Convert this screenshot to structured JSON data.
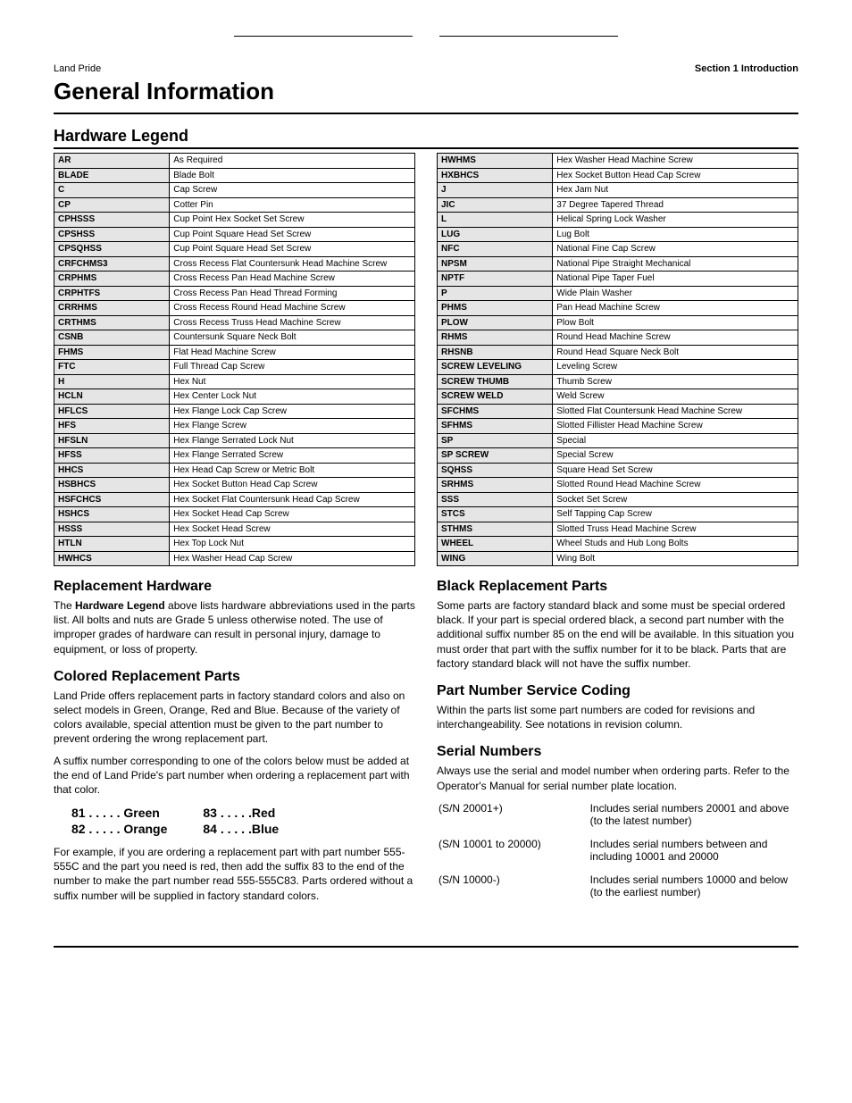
{
  "header": {
    "left": "Land Pride",
    "right": "Section 1   Introduction"
  },
  "title": "General Information",
  "hw_legend_title": "Hardware Legend",
  "legend_left": [
    {
      "a": "AR",
      "d": "As Required"
    },
    {
      "a": "BLADE",
      "d": "Blade Bolt"
    },
    {
      "a": "C",
      "d": "Cap Screw"
    },
    {
      "a": "CP",
      "d": "Cotter Pin"
    },
    {
      "a": "CPHSSS",
      "d": "Cup Point Hex Socket Set Screw"
    },
    {
      "a": "CPSHSS",
      "d": "Cup Point Square Head Set Screw"
    },
    {
      "a": "CPSQHSS",
      "d": "Cup Point Square Head Set Screw"
    },
    {
      "a": "CRFCHMS3",
      "d": "Cross Recess Flat Countersunk Head Machine Screw"
    },
    {
      "a": "CRPHMS",
      "d": "Cross Recess Pan Head Machine Screw"
    },
    {
      "a": "CRPHTFS",
      "d": "Cross Recess Pan Head Thread Forming"
    },
    {
      "a": "CRRHMS",
      "d": "Cross Recess Round Head Machine Screw"
    },
    {
      "a": "CRTHMS",
      "d": "Cross Recess Truss Head Machine Screw"
    },
    {
      "a": "CSNB",
      "d": "Countersunk Square Neck Bolt"
    },
    {
      "a": "FHMS",
      "d": "Flat Head Machine Screw"
    },
    {
      "a": "FTC",
      "d": "Full Thread Cap Screw"
    },
    {
      "a": "H",
      "d": "Hex Nut"
    },
    {
      "a": "HCLN",
      "d": "Hex Center Lock Nut"
    },
    {
      "a": "HFLCS",
      "d": "Hex Flange Lock Cap Screw"
    },
    {
      "a": "HFS",
      "d": "Hex Flange Screw"
    },
    {
      "a": "HFSLN",
      "d": "Hex Flange Serrated Lock Nut"
    },
    {
      "a": "HFSS",
      "d": "Hex Flange Serrated Screw"
    },
    {
      "a": "HHCS",
      "d": "Hex Head Cap Screw or Metric Bolt"
    },
    {
      "a": "HSBHCS",
      "d": "Hex Socket Button Head Cap Screw"
    },
    {
      "a": "HSFCHCS",
      "d": "Hex Socket Flat Countersunk Head Cap Screw"
    },
    {
      "a": "HSHCS",
      "d": "Hex Socket Head Cap Screw"
    },
    {
      "a": "HSSS",
      "d": "Hex Socket Head Screw"
    },
    {
      "a": "HTLN",
      "d": "Hex Top Lock Nut"
    },
    {
      "a": "HWHCS",
      "d": "Hex Washer Head Cap Screw"
    }
  ],
  "legend_right": [
    {
      "a": "HWHMS",
      "d": "Hex Washer Head Machine Screw"
    },
    {
      "a": "HXBHCS",
      "d": "Hex Socket Button Head Cap Screw"
    },
    {
      "a": "J",
      "d": "Hex Jam Nut"
    },
    {
      "a": "JIC",
      "d": "37 Degree Tapered Thread"
    },
    {
      "a": "L",
      "d": "Helical Spring Lock Washer"
    },
    {
      "a": "LUG",
      "d": "Lug Bolt"
    },
    {
      "a": "NFC",
      "d": "National Fine Cap Screw"
    },
    {
      "a": "NPSM",
      "d": "National Pipe Straight Mechanical"
    },
    {
      "a": "NPTF",
      "d": "National Pipe Taper Fuel"
    },
    {
      "a": "P",
      "d": "Wide Plain Washer"
    },
    {
      "a": "PHMS",
      "d": "Pan Head Machine Screw"
    },
    {
      "a": "PLOW",
      "d": "Plow Bolt"
    },
    {
      "a": "RHMS",
      "d": "Round Head Machine Screw"
    },
    {
      "a": "RHSNB",
      "d": "Round Head Square Neck Bolt"
    },
    {
      "a": "SCREW LEVELING",
      "d": "Leveling Screw"
    },
    {
      "a": "SCREW THUMB",
      "d": "Thumb Screw"
    },
    {
      "a": "SCREW WELD",
      "d": "Weld Screw"
    },
    {
      "a": "SFCHMS",
      "d": "Slotted Flat Countersunk Head Machine Screw"
    },
    {
      "a": "SFHMS",
      "d": "Slotted Fillister Head Machine Screw"
    },
    {
      "a": "SP",
      "d": "Special"
    },
    {
      "a": "SP SCREW",
      "d": "Special Screw"
    },
    {
      "a": "SQHSS",
      "d": "Square Head Set Screw"
    },
    {
      "a": "SRHMS",
      "d": "Slotted Round Head Machine Screw"
    },
    {
      "a": "SSS",
      "d": "Socket Set Screw"
    },
    {
      "a": "STCS",
      "d": "Self Tapping Cap Screw"
    },
    {
      "a": "STHMS",
      "d": "Slotted Truss Head Machine Screw"
    },
    {
      "a": "WHEEL",
      "d": "Wheel Studs and Hub Long Bolts"
    },
    {
      "a": "WING",
      "d": "Wing Bolt"
    }
  ],
  "left_sections": {
    "replacement_hw_title": "Replacement Hardware",
    "replacement_hw_pre": "The ",
    "replacement_hw_bold": "Hardware Legend",
    "replacement_hw_post": " above lists hardware abbreviations used in the parts list. All bolts and nuts are Grade 5 unless otherwise noted. The use of improper grades of hardware can result in personal injury, damage to equipment, or loss of property.",
    "colored_title": "Colored Replacement Parts",
    "colored_p1": "Land Pride offers replacement parts in factory standard colors and also on select models in Green, Orange, Red and Blue. Because of the variety of colors available, special attention must be given to the part number to prevent ordering the wrong replacement part.",
    "colored_p2": "A suffix number corresponding to one of the colors below must be added at the end of Land Pride's part number when ordering a replacement part with that color.",
    "colors": {
      "c81": "81 . . . . .  Green",
      "c82": "82 . . . . .  Orange",
      "c83": "83  . . . . .Red",
      "c84": "84  . . . . .Blue"
    },
    "colored_p3": "For example, if you are ordering a replacement part with part number 555-555C and the part you need is red, then add the suffix 83 to the end of the number to make the part number read 555-555C83. Parts ordered without a suffix number will be supplied in factory standard colors."
  },
  "right_sections": {
    "black_title": "Black Replacement Parts",
    "black_p": "Some parts are factory standard black and some must be special ordered black. If your part is special ordered black, a second part number with the additional suffix number 85 on the end will be available. In this situation you must order that part with the suffix number for it to be black. Parts that are factory standard black will not have the suffix number.",
    "pn_title": "Part Number Service Coding",
    "pn_p": "Within the parts list some part numbers are coded for revisions and interchangeability. See notations in revision column.",
    "sn_title": "Serial Numbers",
    "sn_p": "Always use the serial and model number when ordering parts. Refer to the Operator's Manual for serial number plate location.",
    "sn_rows": [
      {
        "l": "(S/N 20001+)",
        "r": "Includes serial numbers 20001 and above (to the latest number)"
      },
      {
        "l": "(S/N 10001 to 20000)",
        "r": "Includes serial numbers between and including 10001 and 20000"
      },
      {
        "l": "(S/N 10000-)",
        "r": "Includes serial numbers 10000 and below (to the earliest number)"
      }
    ]
  }
}
